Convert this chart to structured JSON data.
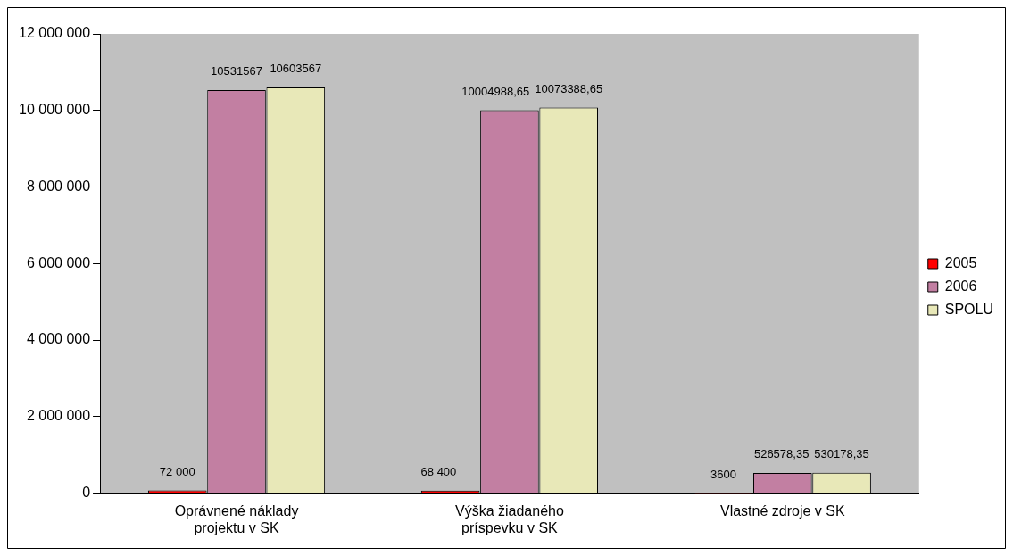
{
  "chart_data": {
    "type": "bar",
    "categories": [
      "Oprávnené náklady projektu v SK",
      "Výška žiadaného príspevku v SK",
      "Vlastné zdroje v SK"
    ],
    "series": [
      {
        "name": "2005",
        "color": "#ff0000",
        "values": [
          72000,
          68400,
          3600
        ],
        "value_labels": [
          "72 000",
          "68 400",
          "3600"
        ]
      },
      {
        "name": "2006",
        "color": "#c27fa2",
        "values": [
          10531567,
          10004988.65,
          526578.35
        ],
        "value_labels": [
          "10531567",
          "10004988,65",
          "526578,35"
        ]
      },
      {
        "name": "SPOLU",
        "color": "#e8e8b8",
        "values": [
          10603567,
          10073388.65,
          530178.35
        ],
        "value_labels": [
          "10603567",
          "10073388,65",
          "530178,35"
        ]
      }
    ],
    "ylim": [
      0,
      12000000
    ],
    "yticks": [
      {
        "value": 0,
        "label": "0"
      },
      {
        "value": 2000000,
        "label": "2 000 000"
      },
      {
        "value": 4000000,
        "label": "4 000 000"
      },
      {
        "value": 6000000,
        "label": "6 000 000"
      },
      {
        "value": 8000000,
        "label": "8 000 000"
      },
      {
        "value": 10000000,
        "label": "10 000 000"
      },
      {
        "value": 12000000,
        "label": "12 000 000"
      }
    ],
    "grid": false,
    "legend": "right"
  }
}
